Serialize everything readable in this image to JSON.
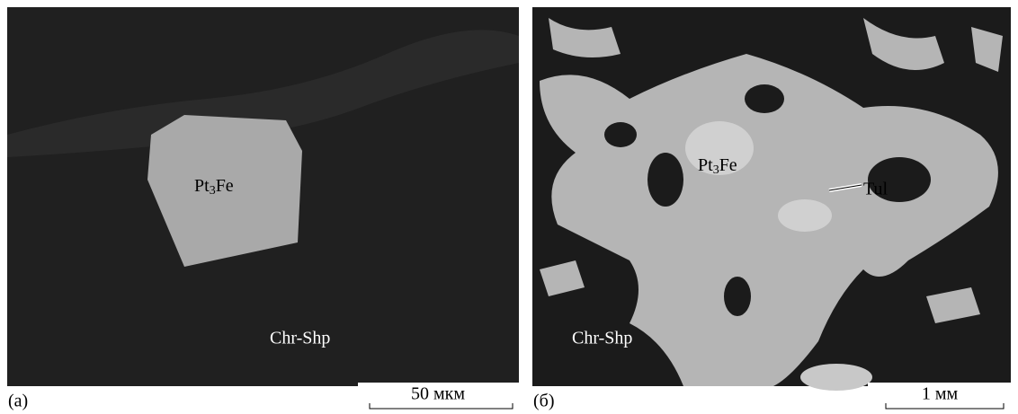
{
  "panels": [
    {
      "label": "(a)",
      "mineral": [
        "Pt",
        "3",
        "Fe"
      ],
      "matrix": "Chr-Shp",
      "scale": "50 мкм"
    },
    {
      "label": "(б)",
      "mineral": [
        "Pt",
        "3",
        "Fe"
      ],
      "matrix": "Chr-Shp",
      "pointer": "Tul",
      "scale": "1 мм"
    }
  ]
}
